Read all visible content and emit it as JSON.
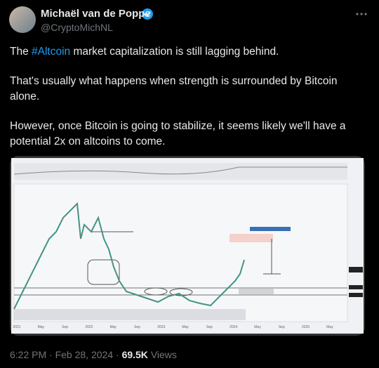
{
  "author": {
    "name": "Michaël van de Poppe",
    "handle": "@CryptoMichNL"
  },
  "tweet": {
    "paragraphs": [
      [
        "The ",
        "#Altcoin",
        " market capitalization is still lagging behind."
      ],
      [
        "That's usually what happens when strength is surrounded by Bitcoin alone."
      ],
      [
        "However, once Bitcoin is going to stabilize, it seems likely we'll have a potential 2x on altcoins to come."
      ]
    ]
  },
  "chart_image": {
    "x_labels": [
      "2021",
      "May",
      "Sep",
      "2022",
      "May",
      "Sep",
      "2023",
      "May",
      "Sep",
      "2024",
      "May",
      "Sep",
      "2025",
      "May"
    ]
  },
  "footer": {
    "time": "6:22 PM",
    "separator": "·",
    "date": "Feb 28, 2024",
    "views": "69.5K",
    "views_label": "Views"
  }
}
